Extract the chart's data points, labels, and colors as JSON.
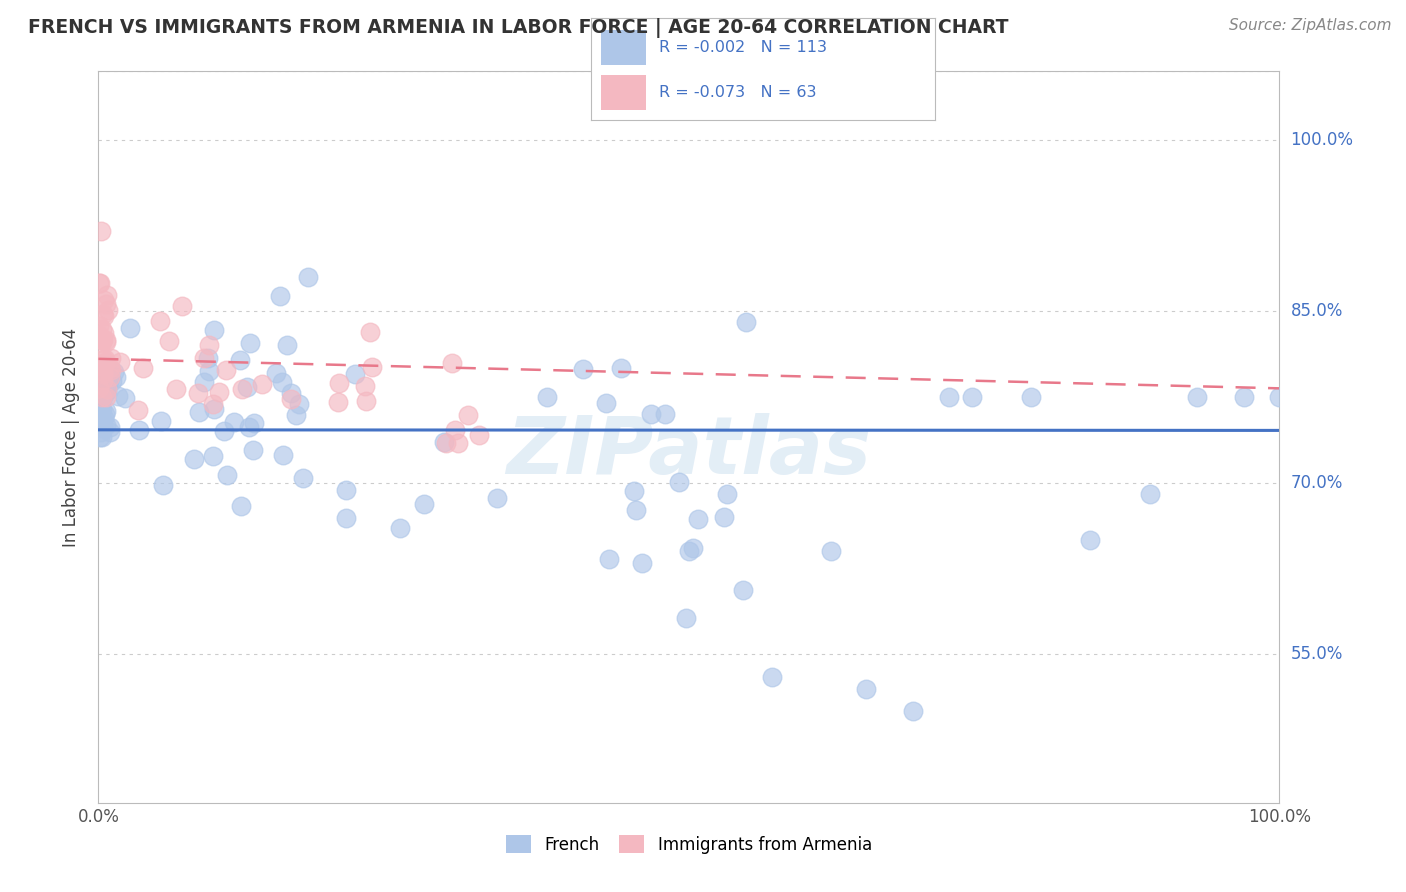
{
  "title": "FRENCH VS IMMIGRANTS FROM ARMENIA IN LABOR FORCE | AGE 20-64 CORRELATION CHART",
  "source": "Source: ZipAtlas.com",
  "ylabel": "In Labor Force | Age 20-64",
  "xlim": [
    0.0,
    1.0
  ],
  "ylim": [
    0.42,
    1.06
  ],
  "ytick_vals": [
    0.55,
    0.7,
    0.85,
    1.0
  ],
  "ytick_labels": [
    "55.0%",
    "70.0%",
    "85.0%",
    "100.0%"
  ],
  "xtick_vals": [
    0.0,
    1.0
  ],
  "xtick_labels": [
    "0.0%",
    "100.0%"
  ],
  "french_R": -0.002,
  "french_N": 113,
  "armenia_R": -0.073,
  "armenia_N": 63,
  "french_color": "#aec6e8",
  "armenia_color": "#f4b8c1",
  "french_line_color": "#4472c4",
  "armenia_line_color": "#e8788a",
  "legend_french_label": "French",
  "legend_armenia_label": "Immigrants from Armenia",
  "watermark": "ZIPatlas",
  "background_color": "#ffffff",
  "grid_color": "#cccccc",
  "french_line_start_y": 0.775,
  "french_line_end_y": 0.775,
  "armenia_line_start_y": 0.81,
  "armenia_line_end_y": 0.75
}
